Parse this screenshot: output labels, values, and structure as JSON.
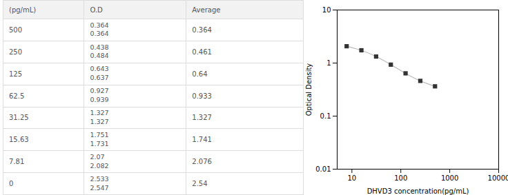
{
  "chart_data": [
    {
      "type": "table",
      "headers": [
        "(pg/mL)",
        "O.D",
        "Average"
      ],
      "rows": [
        [
          "500",
          [
            "0.364",
            "0.364"
          ],
          "0.364"
        ],
        [
          "250",
          [
            "0.438",
            "0.484"
          ],
          "0.461"
        ],
        [
          "125",
          [
            "0.643",
            "0.637"
          ],
          "0.64"
        ],
        [
          "62.5",
          [
            "0.927",
            "0.939"
          ],
          "0.933"
        ],
        [
          "31.25",
          [
            "1.327",
            "1.327"
          ],
          "1.327"
        ],
        [
          "15.63",
          [
            "1.751",
            "1.731"
          ],
          "1.741"
        ],
        [
          "7.81",
          [
            "2.07",
            "2.082"
          ],
          "2.076"
        ],
        [
          "0",
          [
            "2.533",
            "2.547"
          ],
          "2.54"
        ]
      ]
    },
    {
      "type": "scatter",
      "x_label": "DHVD3 concentration(pg/mL)",
      "y_label": "Optical Density",
      "x": [
        7.81,
        15.63,
        31.25,
        62.5,
        125,
        250,
        500
      ],
      "series": [
        {
          "type": "line",
          "line_style": "solid",
          "color": "#bbbbbb",
          "values": [
            2.076,
            1.741,
            1.327,
            0.933,
            0.64,
            0.461,
            0.364
          ]
        },
        {
          "type": "scatter",
          "marker": "square",
          "color": "#333333",
          "values": [
            2.076,
            1.741,
            1.327,
            0.933,
            0.64,
            0.461,
            0.364
          ]
        }
      ],
      "log": true,
      "xlim": [
        5,
        10000
      ],
      "ylim": [
        0.01,
        10
      ],
      "xticks": [
        10,
        100,
        1000,
        10000
      ],
      "yticks": [
        10,
        1,
        0.1,
        0.01
      ],
      "grid": false
    }
  ]
}
